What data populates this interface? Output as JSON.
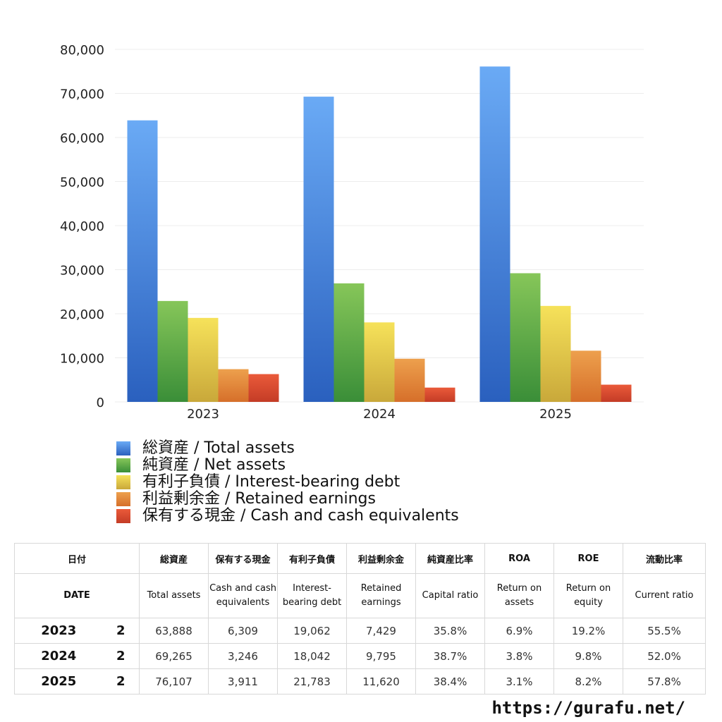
{
  "chart_data": {
    "type": "bar",
    "categories": [
      "2023",
      "2024",
      "2025"
    ],
    "ylim": [
      0,
      80000
    ],
    "yticks": [
      "0",
      "10,000",
      "20,000",
      "30,000",
      "40,000",
      "50,000",
      "60,000",
      "70,000",
      "80,000"
    ],
    "grid": true,
    "legend_position": "bottom-left",
    "series": [
      {
        "name": "総資産 / Total assets",
        "values": [
          63888,
          69265,
          76107
        ],
        "color_top": "#6aaaf5",
        "color_bottom": "#2a60be"
      },
      {
        "name": "純資産 / Net assets",
        "values": [
          22900,
          26900,
          29200
        ],
        "color_top": "#86c659",
        "color_bottom": "#3a8e38"
      },
      {
        "name": "有利子負債 / Interest-bearing debt",
        "values": [
          19062,
          18042,
          21783
        ],
        "color_top": "#f6e25a",
        "color_bottom": "#c9a83a"
      },
      {
        "name": "利益剰余金 / Retained earnings",
        "values": [
          7429,
          9795,
          11620
        ],
        "color_top": "#eda04d",
        "color_bottom": "#d66f2a"
      },
      {
        "name": "保有する現金 /  Cash and cash equivalents",
        "values": [
          6309,
          3246,
          3911
        ],
        "color_top": "#ea5a3a",
        "color_bottom": "#c43c26"
      }
    ]
  },
  "table": {
    "header_jp": [
      "日付",
      "総資産",
      "保有する現金",
      "有利子負債",
      "利益剰余金",
      "純資産比率",
      "ROA",
      "ROE",
      "流動比率"
    ],
    "header_en": [
      "DATE",
      "Total assets",
      "Cash and cash equivalents",
      "Interest-bearing debt",
      "Retained earnings",
      "Capital ratio",
      "Return on assets",
      "Return on equity",
      "Current ratio"
    ],
    "rows": [
      {
        "year": "2023",
        "month": "2",
        "cells": [
          "63,888",
          "6,309",
          "19,062",
          "7,429",
          "35.8%",
          "6.9%",
          "19.2%",
          "55.5%"
        ]
      },
      {
        "year": "2024",
        "month": "2",
        "cells": [
          "69,265",
          "3,246",
          "18,042",
          "9,795",
          "38.7%",
          "3.8%",
          "9.8%",
          "52.0%"
        ]
      },
      {
        "year": "2025",
        "month": "2",
        "cells": [
          "76,107",
          "3,911",
          "21,783",
          "11,620",
          "38.4%",
          "3.1%",
          "8.2%",
          "57.8%"
        ]
      }
    ]
  },
  "footer": {
    "site": "https://gurafu.net/"
  }
}
